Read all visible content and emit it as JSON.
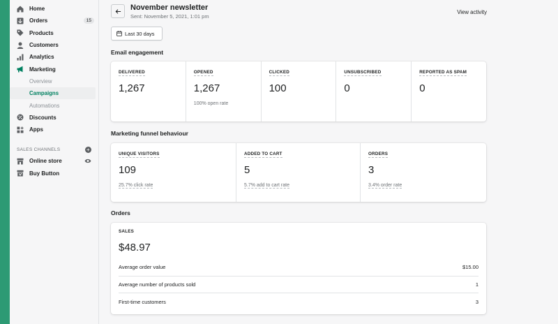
{
  "sidebar": {
    "items": [
      {
        "label": "Home",
        "icon": "home-icon"
      },
      {
        "label": "Orders",
        "icon": "orders-icon",
        "badge": "15"
      },
      {
        "label": "Products",
        "icon": "tag-icon"
      },
      {
        "label": "Customers",
        "icon": "person-icon"
      },
      {
        "label": "Analytics",
        "icon": "bar-chart-icon"
      },
      {
        "label": "Marketing",
        "icon": "megaphone-icon"
      }
    ],
    "marketing_sub": [
      "Overview",
      "Campaigns",
      "Automations"
    ],
    "items_after": [
      {
        "label": "Discounts",
        "icon": "discount-icon"
      },
      {
        "label": "Apps",
        "icon": "apps-icon"
      }
    ],
    "sales_channels_title": "SALES CHANNELS",
    "channels": [
      {
        "label": "Online store",
        "icon": "store-icon"
      },
      {
        "label": "Buy Button",
        "icon": "buy-button-icon"
      }
    ]
  },
  "header": {
    "title": "November newsletter",
    "subtitle": "Sent: November 5, 2021, 1:01 pm",
    "view_activity": "View activity",
    "date_range": "Last 30 days"
  },
  "email_engagement": {
    "title": "Email engagement",
    "metrics": [
      {
        "label": "DELIVERED",
        "value": "1,267",
        "sub": ""
      },
      {
        "label": "OPENED",
        "value": "1,267",
        "sub": "100% open rate"
      },
      {
        "label": "CLICKED",
        "value": "100",
        "sub": ""
      },
      {
        "label": "UNSUBSCRIBED",
        "value": "0",
        "sub": ""
      },
      {
        "label": "REPORTED AS SPAM",
        "value": "0",
        "sub": ""
      }
    ]
  },
  "funnel": {
    "title": "Marketing funnel behaviour",
    "metrics": [
      {
        "label": "UNIQUE VISITORS",
        "value": "109",
        "sub": "25.7% click rate"
      },
      {
        "label": "ADDED TO CART",
        "value": "5",
        "sub": "5.7% add to cart rate"
      },
      {
        "label": "ORDERS",
        "value": "3",
        "sub": "3.4% order rate"
      }
    ]
  },
  "orders": {
    "title": "Orders",
    "sales_label": "SALES",
    "sales_value": "$48.97",
    "rows": [
      {
        "label": "Average order value",
        "value": "$15.00"
      },
      {
        "label": "Average number of products sold",
        "value": "1"
      },
      {
        "label": "First-time customers",
        "value": "3"
      }
    ]
  },
  "colors": {
    "accent": "#008060",
    "frame": "#2d9a74"
  }
}
